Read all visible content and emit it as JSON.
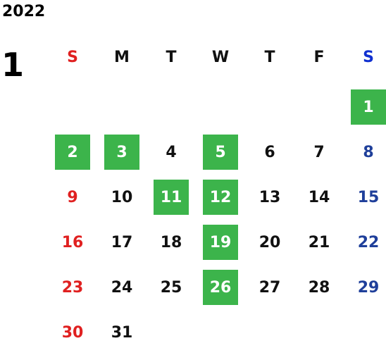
{
  "year": "2022",
  "month": "1",
  "weekdays": [
    "S",
    "M",
    "T",
    "W",
    "T",
    "F",
    "S"
  ],
  "start_offset": 6,
  "days": [
    "1",
    "2",
    "3",
    "4",
    "5",
    "6",
    "7",
    "8",
    "9",
    "10",
    "11",
    "12",
    "13",
    "14",
    "15",
    "16",
    "17",
    "18",
    "19",
    "20",
    "21",
    "22",
    "23",
    "24",
    "25",
    "26",
    "27",
    "28",
    "29",
    "30",
    "31"
  ],
  "highlighted_days": [
    "1",
    "2",
    "3",
    "5",
    "11",
    "12",
    "19",
    "26"
  ],
  "colors": {
    "highlight": "#3cb44b",
    "sunday": "#e02020",
    "saturday": "#1f3f9a",
    "saturday_header": "#1030d0",
    "text": "#111111"
  }
}
